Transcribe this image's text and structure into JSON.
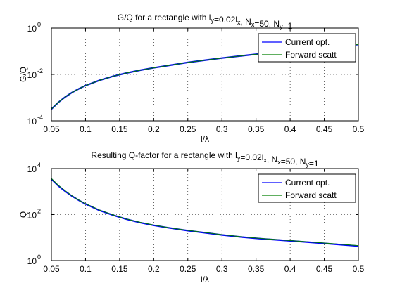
{
  "chart_data": [
    {
      "type": "line",
      "title_parts": [
        {
          "t": "G/Q for a rectangle with l"
        },
        {
          "t": "y",
          "sub": true
        },
        {
          "t": "=0.02l"
        },
        {
          "t": "x",
          "sub": true
        },
        {
          "t": ", N"
        },
        {
          "t": "x",
          "sub": true
        },
        {
          "t": "=50, N"
        },
        {
          "t": "y",
          "sub": true
        },
        {
          "t": "=1"
        }
      ],
      "xlabel": "l/λ",
      "ylabel": "G/Q",
      "x_scale": "linear",
      "y_scale": "log",
      "xlim": [
        0.05,
        0.5
      ],
      "ylim": [
        0.0001,
        1
      ],
      "grid": true,
      "legend_position": "top-right",
      "x_ticks": [
        {
          "v": 0.05,
          "label": "0.05"
        },
        {
          "v": 0.1,
          "label": "0.1"
        },
        {
          "v": 0.15,
          "label": "0.15"
        },
        {
          "v": 0.2,
          "label": "0.2"
        },
        {
          "v": 0.25,
          "label": "0.25"
        },
        {
          "v": 0.3,
          "label": "0.3"
        },
        {
          "v": 0.35,
          "label": "0.35"
        },
        {
          "v": 0.4,
          "label": "0.4"
        },
        {
          "v": 0.45,
          "label": "0.45"
        },
        {
          "v": 0.5,
          "label": "0.5"
        }
      ],
      "y_ticks": [
        {
          "v": 0.0001,
          "base": "10",
          "exp": "-4"
        },
        {
          "v": 0.01,
          "base": "10",
          "exp": "-2"
        },
        {
          "v": 1,
          "base": "10",
          "exp": "0"
        }
      ],
      "x": [
        0.05,
        0.06,
        0.07,
        0.08,
        0.09,
        0.1,
        0.12,
        0.14,
        0.16,
        0.18,
        0.2,
        0.22,
        0.25,
        0.28,
        0.3,
        0.33,
        0.36,
        0.4,
        0.45,
        0.5
      ],
      "series": [
        {
          "name": "Current opt.",
          "color": "#0000ff",
          "values": [
            0.00032,
            0.00062,
            0.00105,
            0.00165,
            0.0024,
            0.0033,
            0.0055,
            0.0083,
            0.0115,
            0.0152,
            0.0193,
            0.024,
            0.033,
            0.043,
            0.051,
            0.064,
            0.08,
            0.105,
            0.145,
            0.195
          ]
        },
        {
          "name": "Forward scatt",
          "color": "#007f00",
          "values": [
            0.00032,
            0.00062,
            0.00105,
            0.00165,
            0.0024,
            0.0033,
            0.0055,
            0.0083,
            0.0115,
            0.0152,
            0.0193,
            0.024,
            0.033,
            0.043,
            0.051,
            0.064,
            0.08,
            0.105,
            0.145,
            0.195
          ]
        }
      ]
    },
    {
      "type": "line",
      "title_parts": [
        {
          "t": "Resulting Q-factor for a rectangle with l"
        },
        {
          "t": "y",
          "sub": true
        },
        {
          "t": "=0.02l"
        },
        {
          "t": "x",
          "sub": true
        },
        {
          "t": ", N"
        },
        {
          "t": "x",
          "sub": true
        },
        {
          "t": "=50, N"
        },
        {
          "t": "y",
          "sub": true
        },
        {
          "t": "=1"
        }
      ],
      "xlabel": "l/λ",
      "ylabel": "Q",
      "x_scale": "linear",
      "y_scale": "log",
      "xlim": [
        0.05,
        0.5
      ],
      "ylim": [
        1,
        10000
      ],
      "grid": true,
      "legend_position": "top-right",
      "x_ticks": [
        {
          "v": 0.05,
          "label": "0.05"
        },
        {
          "v": 0.1,
          "label": "0.1"
        },
        {
          "v": 0.15,
          "label": "0.15"
        },
        {
          "v": 0.2,
          "label": "0.2"
        },
        {
          "v": 0.25,
          "label": "0.25"
        },
        {
          "v": 0.3,
          "label": "0.3"
        },
        {
          "v": 0.35,
          "label": "0.35"
        },
        {
          "v": 0.4,
          "label": "0.4"
        },
        {
          "v": 0.45,
          "label": "0.45"
        },
        {
          "v": 0.5,
          "label": "0.5"
        }
      ],
      "y_ticks": [
        {
          "v": 1,
          "base": "10",
          "exp": "0"
        },
        {
          "v": 100,
          "base": "10",
          "exp": "2"
        },
        {
          "v": 10000,
          "base": "10",
          "exp": "4"
        }
      ],
      "x": [
        0.05,
        0.06,
        0.07,
        0.08,
        0.09,
        0.1,
        0.12,
        0.14,
        0.16,
        0.18,
        0.2,
        0.22,
        0.25,
        0.28,
        0.3,
        0.33,
        0.36,
        0.4,
        0.45,
        0.5
      ],
      "series": [
        {
          "name": "Current opt.",
          "color": "#0000ff",
          "values": [
            3500,
            1800,
            1050,
            640,
            420,
            290,
            155,
            95,
            63,
            45,
            34,
            27,
            20,
            15.5,
            13,
            10.5,
            8.8,
            7.2,
            5.6,
            4.3
          ]
        },
        {
          "name": "Forward scatt",
          "color": "#007f00",
          "values": [
            3700,
            1900,
            1100,
            660,
            430,
            300,
            160,
            97,
            64,
            46,
            35,
            27.5,
            20.5,
            16,
            13.4,
            10.8,
            9.0,
            7.4,
            5.8,
            4.5
          ]
        }
      ]
    }
  ]
}
